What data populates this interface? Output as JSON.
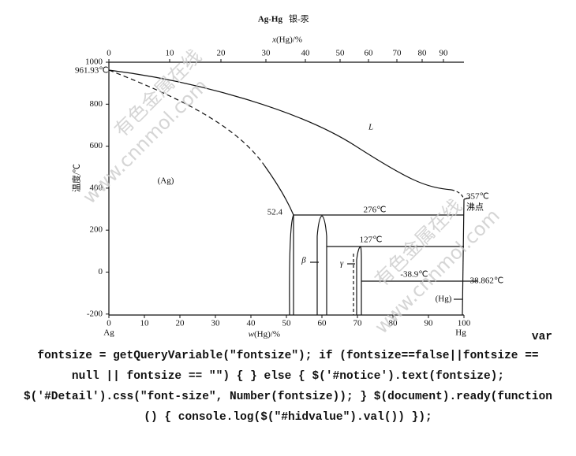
{
  "figure": {
    "title": "Ag-Hg",
    "title_cn": "银-汞",
    "top_axis_var": "x",
    "top_axis_rest": "(Hg)/%",
    "bottom_axis_var": "w",
    "bottom_axis_rest": "(Hg)/%",
    "y_axis_label": "温度/℃",
    "top_ticks": [
      "0",
      "10",
      "20",
      "30",
      "40",
      "50",
      "60",
      "70",
      "80",
      "90"
    ],
    "bottom_ticks": [
      "0",
      "10",
      "20",
      "30",
      "40",
      "50",
      "60",
      "70",
      "80",
      "90",
      "100"
    ],
    "y_ticks": [
      "1000",
      "800",
      "600",
      "400",
      "200",
      "0",
      "-200"
    ],
    "labels": [
      "961.93℃",
      "L",
      "(Ag)",
      "52.4",
      "276℃",
      "127℃",
      "β",
      "γ",
      "-38.9℃",
      "-38.862℃",
      "357℃",
      "沸点",
      "(Hg)",
      "Ag",
      "Hg"
    ]
  },
  "watermark": [
    "有色金属在线",
    "www.cnnmol.com"
  ],
  "code_lines": [
    "var",
    "fontsize = getQueryVariable(\"fontsize\"); if (fontsize==false||fontsize ==",
    "null || fontsize == \"\") { } else { $('#notice').text(fontsize);",
    "$('#Detail').css(\"font-size\", Number(fontsize)); } $(document).ready(function",
    "() { console.log($(\"#hidvalue\").val()) });"
  ]
}
